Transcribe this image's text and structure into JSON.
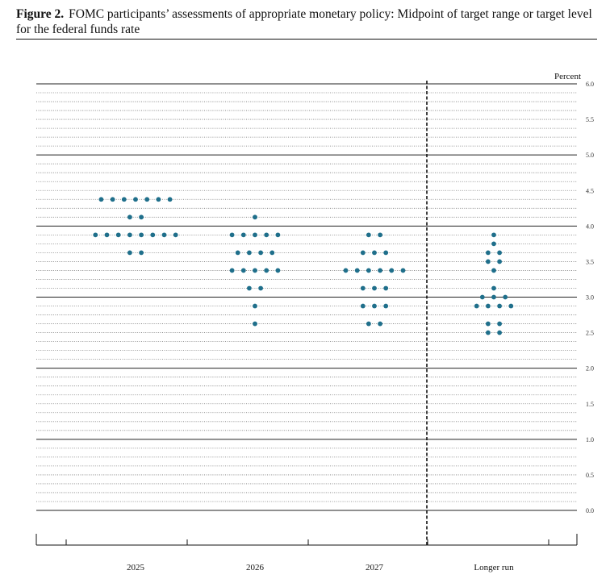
{
  "figure": {
    "label": "Figure 2.",
    "title": "FOMC participants’ assessments of appropriate monetary policy: Midpoint of target range or target level for the federal funds rate"
  },
  "chart_data": {
    "type": "scatter",
    "chart_style": "dot plot",
    "ylabel": "Percent",
    "ylim": [
      0,
      6.0
    ],
    "y_ticks": [
      "0.0",
      "0.5",
      "1.0",
      "1.5",
      "2.0",
      "2.5",
      "3.0",
      "3.5",
      "4.0",
      "4.5",
      "5.0",
      "5.5",
      "6.0"
    ],
    "y_axis_side": "right",
    "gridlines": "horizontal, every 0.125; solid at whole percents, dotted otherwise",
    "categories": [
      "2025",
      "2026",
      "2027",
      "Longer run"
    ],
    "separator": "dashed vertical line between 2027 and Longer run",
    "dot_color": "#1f6f8b",
    "dots": [
      {
        "category": "2025",
        "groups": [
          {
            "y": 4.375,
            "count": 7
          },
          {
            "y": 4.125,
            "count": 2
          },
          {
            "y": 3.875,
            "count": 8
          },
          {
            "y": 3.625,
            "count": 2
          }
        ]
      },
      {
        "category": "2026",
        "groups": [
          {
            "y": 4.125,
            "count": 1
          },
          {
            "y": 3.875,
            "count": 5
          },
          {
            "y": 3.625,
            "count": 4
          },
          {
            "y": 3.375,
            "count": 5
          },
          {
            "y": 3.125,
            "count": 2
          },
          {
            "y": 2.875,
            "count": 1
          },
          {
            "y": 2.625,
            "count": 1
          }
        ]
      },
      {
        "category": "2027",
        "groups": [
          {
            "y": 3.875,
            "count": 2
          },
          {
            "y": 3.625,
            "count": 3
          },
          {
            "y": 3.375,
            "count": 6
          },
          {
            "y": 3.125,
            "count": 3
          },
          {
            "y": 2.875,
            "count": 3
          },
          {
            "y": 2.625,
            "count": 2
          }
        ]
      },
      {
        "category": "Longer run",
        "groups": [
          {
            "y": 3.875,
            "count": 1
          },
          {
            "y": 3.75,
            "count": 1
          },
          {
            "y": 3.625,
            "count": 2
          },
          {
            "y": 3.5,
            "count": 2
          },
          {
            "y": 3.375,
            "count": 1
          },
          {
            "y": 3.125,
            "count": 1
          },
          {
            "y": 3.0,
            "count": 3
          },
          {
            "y": 2.875,
            "count": 4
          },
          {
            "y": 2.625,
            "count": 2
          },
          {
            "y": 2.5,
            "count": 2
          }
        ]
      }
    ]
  }
}
